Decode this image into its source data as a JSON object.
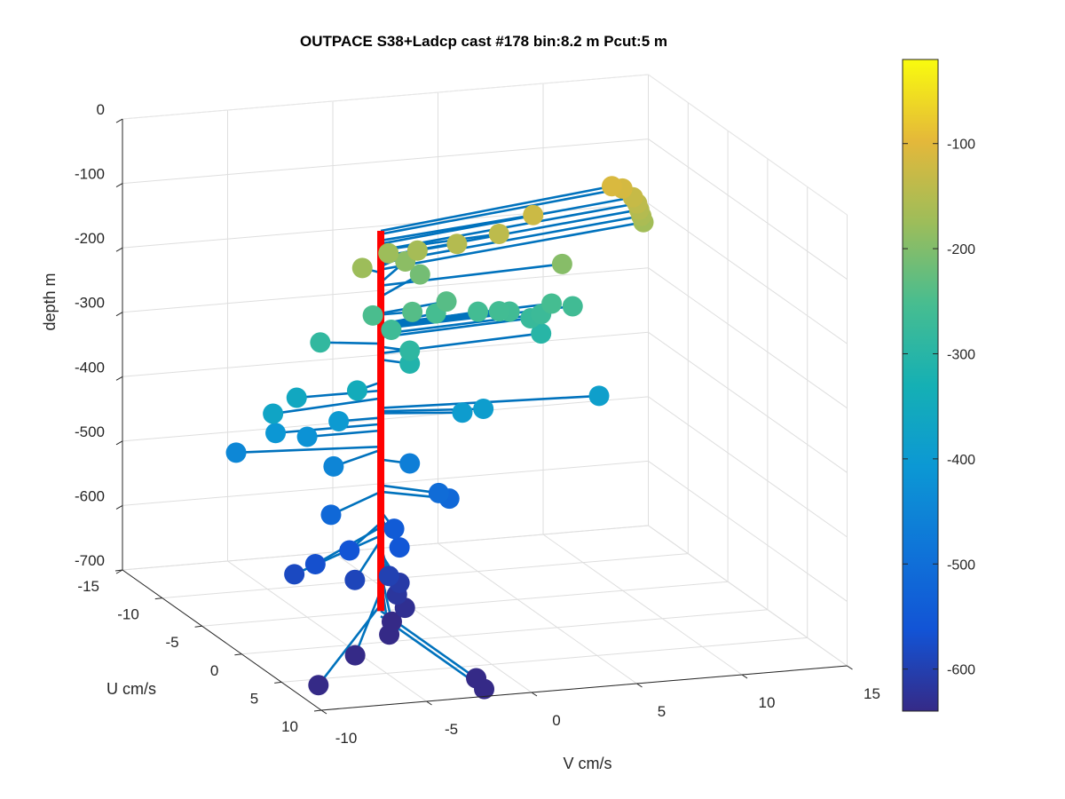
{
  "chart_data": {
    "type": "scatter",
    "title": "OUTPACE S38+Ladcp cast #178 bin:8.2 m  Pcut:5 m",
    "xlabel": "V cm/s",
    "ylabel": "U cm/s",
    "zlabel": "depth m",
    "xlim": [
      -10,
      15
    ],
    "ylim": [
      -15,
      10
    ],
    "zlim": [
      -700,
      0
    ],
    "x_ticks": [
      "-10",
      "-5",
      "0",
      "5",
      "10",
      "15"
    ],
    "y_ticks": [
      "-15",
      "-10",
      "-5",
      "0",
      "5",
      "10"
    ],
    "z_ticks": [
      "0",
      "-100",
      "-200",
      "-300",
      "-400",
      "-500",
      "-600",
      "-700"
    ],
    "grid": true,
    "colorbar": {
      "colormap": "parula",
      "range": [
        -640,
        -20
      ],
      "ticks": [
        "-100",
        "-200",
        "-300",
        "-400",
        "-500",
        "-600"
      ],
      "tick_values": [
        -100,
        -200,
        -300,
        -400,
        -500,
        -600
      ]
    },
    "line_color": "#0072bd",
    "mast_color": "#ff0000",
    "mast": {
      "v": -1.5,
      "u": -5,
      "z_top": -110,
      "z_bottom": -700
    },
    "points_note": "each point: [v cm/s, u cm/s, depth m]; stems connect to the red mast at the same depth",
    "points": [
      [
        11.0,
        -9,
        -110
      ],
      [
        11.5,
        -9,
        -115
      ],
      [
        12.0,
        -9,
        -130
      ],
      [
        12.2,
        -9,
        -140
      ],
      [
        12.3,
        -9,
        -150
      ],
      [
        12.4,
        -9,
        -160
      ],
      [
        12.5,
        -9,
        -170
      ],
      [
        6.5,
        -7,
        -125
      ],
      [
        4.5,
        -6,
        -140
      ],
      [
        2.5,
        -6,
        -150
      ],
      [
        7.5,
        -6,
        -195
      ],
      [
        1.0,
        -7,
        -165
      ],
      [
        0.0,
        -8,
        -175
      ],
      [
        0.8,
        -8,
        -190
      ],
      [
        1.5,
        -8,
        -212
      ],
      [
        -2.0,
        -6,
        -175
      ],
      [
        2.0,
        -6,
        -238
      ],
      [
        1.5,
        -6,
        -255
      ],
      [
        4.5,
        -6,
        -260
      ],
      [
        7.0,
        -6,
        -255
      ],
      [
        8.0,
        -6,
        -262
      ],
      [
        6.5,
        -6,
        -270
      ],
      [
        6.0,
        -6,
        -275
      ],
      [
        5.0,
        -6,
        -262
      ],
      [
        3.5,
        -6,
        -258
      ],
      [
        0.0,
        -5,
        -240
      ],
      [
        -1.5,
        -6,
        -250
      ],
      [
        -1.0,
        -5,
        -265
      ],
      [
        6.5,
        -6,
        -300
      ],
      [
        -4.0,
        -6,
        -285
      ],
      [
        -0.5,
        -4,
        -290
      ],
      [
        -0.5,
        -4,
        -310
      ],
      [
        3.0,
        -4,
        -390
      ],
      [
        8.5,
        -4,
        -385
      ],
      [
        2.0,
        -4,
        -393
      ],
      [
        -3.0,
        -4,
        -345
      ],
      [
        -5.5,
        -5,
        -358
      ],
      [
        -3.5,
        -5,
        -400
      ],
      [
        -7.0,
        -4,
        -370
      ],
      [
        -6.5,
        -5,
        -410
      ],
      [
        -5.0,
        -5,
        -420
      ],
      [
        -8.0,
        -6,
        -445
      ],
      [
        -4.5,
        -3,
        -450
      ],
      [
        -0.5,
        -4,
        -465
      ],
      [
        -5.0,
        -2,
        -515
      ],
      [
        0.5,
        -3,
        -505
      ],
      [
        1.0,
        -3,
        -515
      ],
      [
        -2.0,
        -2,
        -545
      ],
      [
        -4.5,
        -1,
        -563
      ],
      [
        -2.5,
        0,
        -555
      ],
      [
        -5.0,
        1,
        -590
      ],
      [
        -6.5,
        0,
        -570
      ],
      [
        -7.5,
        0,
        -583
      ],
      [
        -3.0,
        0,
        -598
      ],
      [
        -2.5,
        0,
        -610
      ],
      [
        -3.0,
        1,
        -618
      ],
      [
        -3.0,
        2,
        -630
      ],
      [
        -4.0,
        3,
        -640
      ],
      [
        -4.5,
        4,
        -650
      ],
      [
        -6.5,
        5,
        -668
      ],
      [
        -9.0,
        7,
        -690
      ],
      [
        -1.5,
        7,
        -700
      ],
      [
        -1.5,
        8,
        -708
      ]
    ]
  }
}
